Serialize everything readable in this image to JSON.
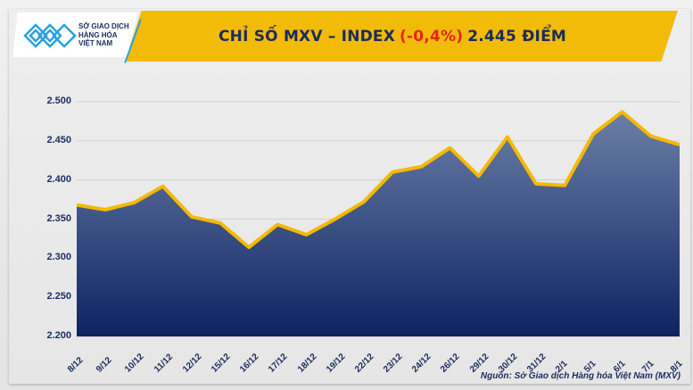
{
  "header": {
    "logo_lines": [
      "SỞ GIAO DỊCH",
      "HÀNG HÓA",
      "VIỆT NAM"
    ],
    "title_prefix": "CHỈ SỐ MXV – INDEX",
    "title_change": "(-0,4%)",
    "title_suffix": "2.445 ĐIỂM",
    "accent_color": "#f2bb07",
    "negative_color": "#e8211e"
  },
  "footer": {
    "source": "Nguồn: Sở Giao dịch Hàng hóa Việt Nam (MXV)"
  },
  "chart_data": {
    "type": "area",
    "title": "CHỈ SỐ MXV – INDEX (-0,4%) 2.445 ĐIỂM",
    "xlabel": "",
    "ylabel": "",
    "categories": [
      "8/12",
      "9/12",
      "10/12",
      "11/12",
      "12/12",
      "15/12",
      "16/12",
      "17/12",
      "18/12",
      "19/12",
      "22/12",
      "23/12",
      "24/12",
      "26/12",
      "29/12",
      "30/12",
      "31/12",
      "2/1",
      "5/1",
      "6/1",
      "7/1",
      "8/1"
    ],
    "series": [
      {
        "name": "MXV-Index",
        "values": [
          2368,
          2362,
          2371,
          2392,
          2353,
          2345,
          2314,
          2343,
          2330,
          2350,
          2372,
          2410,
          2417,
          2441,
          2405,
          2455,
          2395,
          2393,
          2459,
          2487,
          2456,
          2445
        ]
      }
    ],
    "ylim": [
      2200,
      2500
    ],
    "yticks": [
      "2.200",
      "2.250",
      "2.300",
      "2.350",
      "2.400",
      "2.450",
      "2.500"
    ],
    "ytick_values": [
      2200,
      2250,
      2300,
      2350,
      2400,
      2450,
      2500
    ],
    "grid": true,
    "legend": "none",
    "line_color": "#f5b800",
    "fill_top_color": "#6b7fa6",
    "fill_bottom_color": "#0d2462"
  }
}
